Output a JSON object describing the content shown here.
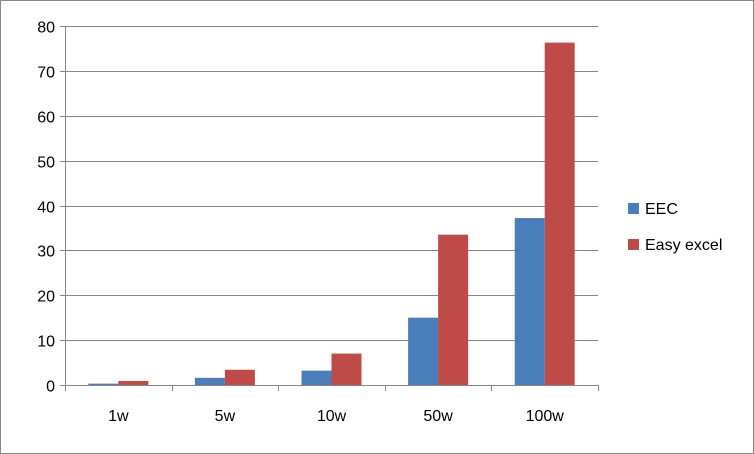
{
  "chart_data": {
    "type": "bar",
    "title": "",
    "xlabel": "",
    "ylabel": "",
    "categories": [
      "1w",
      "5w",
      "10w",
      "50w",
      "100w"
    ],
    "series": [
      {
        "name": "EEC",
        "color": "#4a7ebb",
        "values": [
          0.3,
          1.6,
          3.2,
          15.0,
          37.2
        ]
      },
      {
        "name": "Easy excel",
        "color": "#be4b48",
        "values": [
          0.9,
          3.4,
          7.0,
          33.5,
          76.3
        ]
      }
    ],
    "ylim": [
      0,
      80
    ],
    "yticks": [
      0,
      10,
      20,
      30,
      40,
      50,
      60,
      70,
      80
    ],
    "grid": "horizontal",
    "legend_position": "right"
  }
}
